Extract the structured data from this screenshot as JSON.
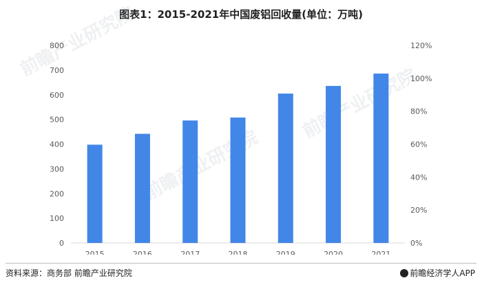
{
  "title": "图表1：2015-2021年中国废铝回收量(单位：万吨)",
  "source": "资料来源：商务部 前瞻产业研究院",
  "brand": "前瞻经济学人APP",
  "watermark": "前瞻产业研究院",
  "colors": {
    "bar": "#4286e8",
    "axis": "#d9d9d9",
    "tick_text": "#595959"
  },
  "chart_data": {
    "type": "bar",
    "categories": [
      "2015",
      "2016",
      "2017",
      "2018",
      "2019",
      "2020",
      "2021"
    ],
    "values": [
      398,
      442,
      496,
      508,
      605,
      636,
      686
    ],
    "title": "图表1：2015-2021年中国废铝回收量(单位：万吨)",
    "ylim": [
      0,
      800
    ],
    "y_ticks": [
      "0",
      "100",
      "200",
      "300",
      "400",
      "500",
      "600",
      "700",
      "800"
    ],
    "y2lim": [
      0,
      1.2
    ],
    "y2_ticks": [
      "0%",
      "20%",
      "40%",
      "60%",
      "80%",
      "100%",
      "120%"
    ],
    "grid": false,
    "legend": "none"
  }
}
